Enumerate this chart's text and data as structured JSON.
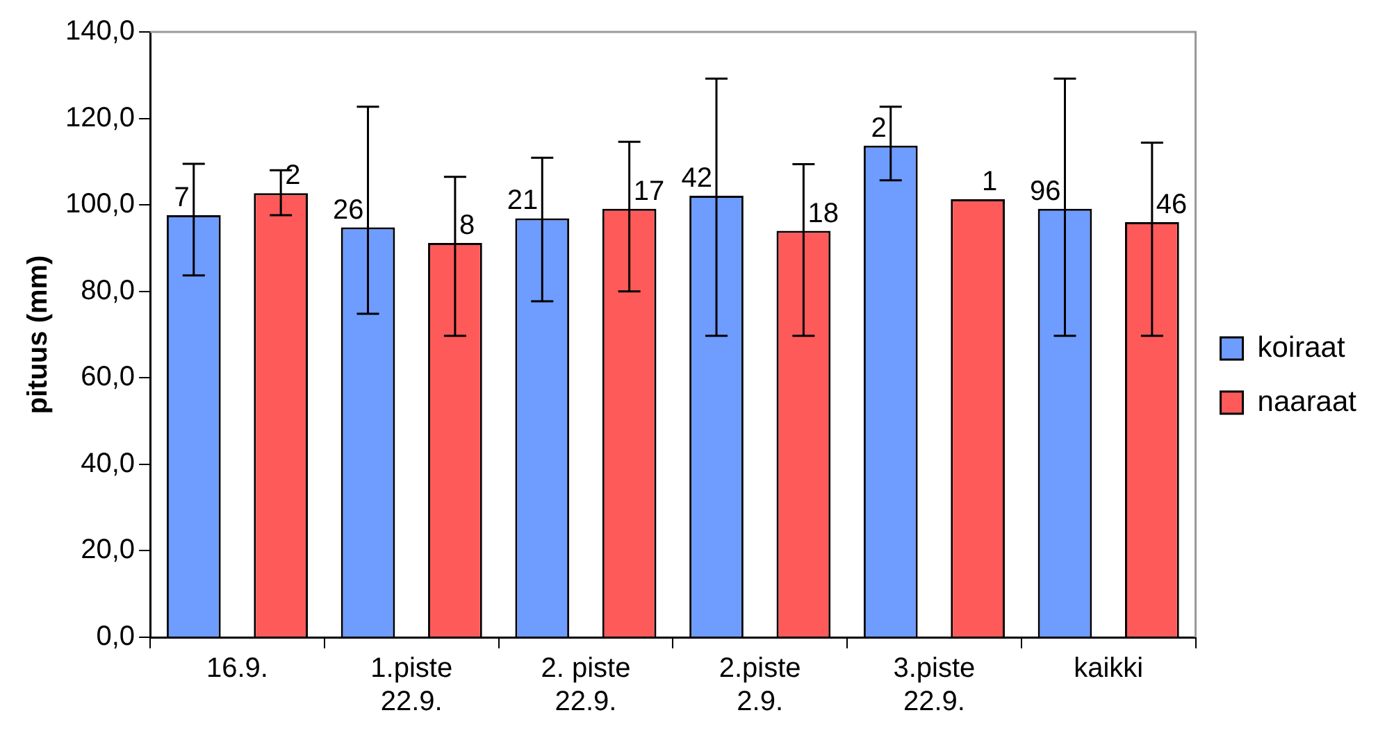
{
  "chart_data": {
    "type": "bar",
    "ylabel": "pituus (mm)",
    "categories": [
      "16.9.",
      "1.piste\n22.9.",
      "2. piste\n22.9.",
      "2.piste\n2.9.",
      "3.piste\n22.9.",
      "kaikki"
    ],
    "series": [
      {
        "name": "koiraat",
        "color": "#6f9cff",
        "values": [
          97.6,
          94.8,
          96.9,
          102.1,
          113.7,
          99.1
        ],
        "errors": [
          [
            83.7,
            109.5
          ],
          [
            74.8,
            122.7
          ],
          [
            77.7,
            110.9
          ],
          [
            69.7,
            129.2
          ],
          [
            105.7,
            122.7
          ],
          [
            69.7,
            129.2
          ]
        ]
      },
      {
        "name": "naaraat",
        "color": "#ff5a5a",
        "values": [
          102.7,
          91.2,
          99.1,
          94.0,
          101.3,
          96.0
        ],
        "errors": [
          [
            97.6,
            108.0
          ],
          [
            69.7,
            106.5
          ],
          [
            80.0,
            114.6
          ],
          [
            69.7,
            109.4
          ],
          null,
          [
            69.7,
            114.4
          ]
        ]
      }
    ],
    "annotations": [
      "7",
      "26",
      "21",
      "42",
      "2",
      "96",
      "2",
      "8",
      "17",
      "18",
      "1",
      "46"
    ],
    "ylim": [
      0,
      140
    ],
    "yticks": [
      {
        "value": 0,
        "label": "0,0"
      },
      {
        "value": 20,
        "label": "20,0"
      },
      {
        "value": 40,
        "label": "40,0"
      },
      {
        "value": 60,
        "label": "60,0"
      },
      {
        "value": 80,
        "label": "80,0"
      },
      {
        "value": 100,
        "label": "100,0"
      },
      {
        "value": 120,
        "label": "120,0"
      },
      {
        "value": 140,
        "label": "140,0"
      }
    ],
    "grid": false,
    "legend": "right"
  }
}
